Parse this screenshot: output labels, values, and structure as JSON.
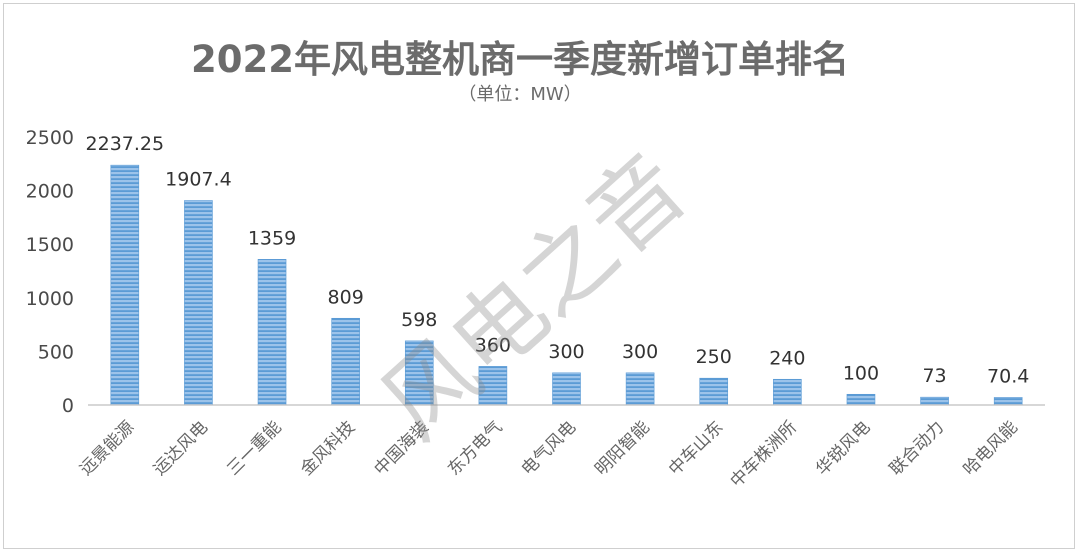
{
  "chart_data": {
    "type": "bar",
    "title": "2022年风电整机商一季度新增订单排名",
    "subtitle": "（单位：MW）",
    "categories": [
      "远景能源",
      "运达风电",
      "三一重能",
      "金风科技",
      "中国海装",
      "东方电气",
      "电气风电",
      "明阳智能",
      "中车山东",
      "中车株洲所",
      "华锐风电",
      "联合动力",
      "哈电风能"
    ],
    "series": [
      {
        "values": [
          2237.25,
          1907.4,
          1359,
          809,
          598,
          360,
          300,
          300,
          250,
          240,
          100,
          73,
          70.4
        ],
        "labels": [
          "2237.25",
          "1907.4",
          "1359",
          "809",
          "598",
          "360",
          "300",
          "300",
          "250",
          "240",
          "100",
          "73",
          "70.4"
        ]
      }
    ],
    "yticks": [
      0,
      500,
      1000,
      1500,
      2000,
      2500
    ],
    "ylim": [
      0,
      2500
    ],
    "grid": false,
    "legend": "none",
    "bar_color": "#5b9bd5",
    "bar_style": "horizontal-striped"
  },
  "watermark": "风电之音"
}
